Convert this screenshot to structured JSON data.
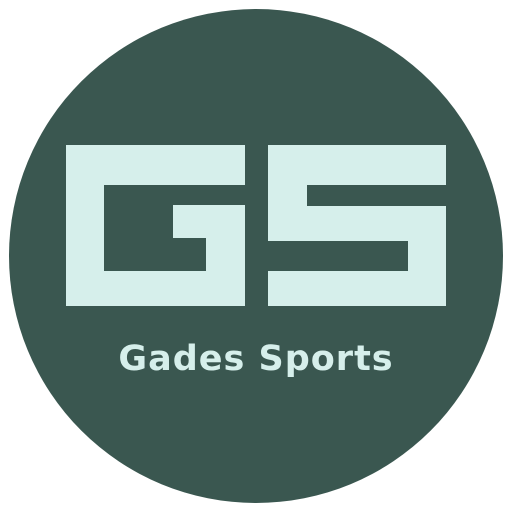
{
  "logo": {
    "monogram": "GS",
    "brand_name": "Gades Sports",
    "colors": {
      "background": "#ffffff",
      "circle": "#3a5750",
      "accent": "#d6efeb"
    }
  }
}
